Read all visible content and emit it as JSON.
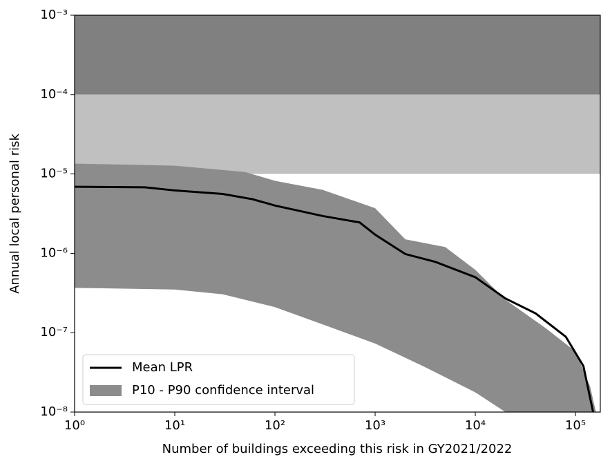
{
  "chart_data": {
    "type": "line",
    "xlabel": "Number of buildings exceeding this risk in GY2021/2022",
    "ylabel": "Annual local personal risk",
    "xscale": "log",
    "yscale": "log",
    "xlim": [
      1,
      177000
    ],
    "ylim": [
      1e-08,
      0.001
    ],
    "xticks": [
      {
        "value": 1,
        "label": "10⁰"
      },
      {
        "value": 10,
        "label": "10¹"
      },
      {
        "value": 100,
        "label": "10²"
      },
      {
        "value": 1000,
        "label": "10³"
      },
      {
        "value": 10000,
        "label": "10⁴"
      },
      {
        "value": 100000,
        "label": "10⁵"
      }
    ],
    "yticks": [
      {
        "value": 1e-08,
        "label": "10⁻⁸"
      },
      {
        "value": 1e-07,
        "label": "10⁻⁷"
      },
      {
        "value": 1e-06,
        "label": "10⁻⁶"
      },
      {
        "value": 1e-05,
        "label": "10⁻⁵"
      },
      {
        "value": 0.0001,
        "label": "10⁻⁴"
      },
      {
        "value": 0.001,
        "label": "10⁻³"
      }
    ],
    "bands": [
      {
        "from": 0.0001,
        "to": 0.001,
        "color": "#808080"
      },
      {
        "from": 1e-05,
        "to": 0.0001,
        "color": "#c0c0c0"
      }
    ],
    "legend": "lower left",
    "series": [
      {
        "name": "Mean LPR",
        "color": "#000000",
        "x": [
          1,
          5,
          10,
          30,
          60,
          100,
          300,
          700,
          1000,
          2000,
          4000,
          10000,
          20000,
          40000,
          80000,
          120000,
          150000
        ],
        "values": [
          6.9e-06,
          6.8e-06,
          6.2e-06,
          5.6e-06,
          4.8e-06,
          4e-06,
          2.95e-06,
          2.45e-06,
          1.72e-06,
          9.8e-07,
          7.8e-07,
          5e-07,
          2.7e-07,
          1.75e-07,
          8.9e-08,
          3.8e-08,
          1e-08
        ]
      },
      {
        "name": "P10 - P90 confidence interval",
        "color": "#8c8c8c",
        "x_high": [
          1,
          10,
          50,
          100,
          300,
          1000,
          2000,
          5000,
          10000,
          20000,
          50000,
          100000,
          140000,
          160000
        ],
        "high": [
          1.35e-05,
          1.27e-05,
          1.06e-05,
          8.2e-06,
          6.3e-06,
          3.7e-06,
          1.5e-06,
          1.2e-06,
          6.2e-07,
          2.6e-07,
          1.15e-07,
          5.8e-08,
          2.1e-08,
          1e-08
        ],
        "x_low": [
          1,
          10,
          30,
          100,
          300,
          1000,
          3000,
          10000,
          20000
        ],
        "low": [
          3.67e-07,
          3.5e-07,
          3.05e-07,
          2.1e-07,
          1.27e-07,
          7.3e-08,
          3.8e-08,
          1.77e-08,
          1e-08
        ]
      }
    ]
  }
}
